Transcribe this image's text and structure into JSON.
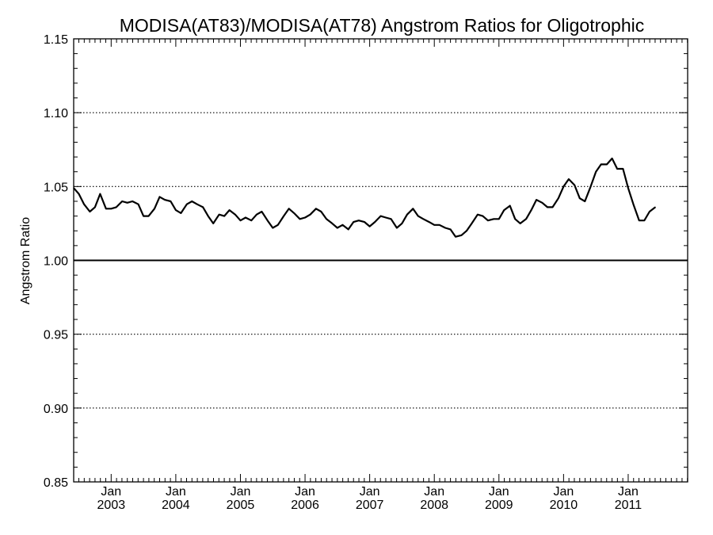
{
  "chart_data": {
    "type": "line",
    "title": "MODISA(AT83)/MODISA(AT78)  Angstrom Ratios for Oligotrophic",
    "xlabel": "",
    "ylabel": "Angstrom Ratio",
    "xlim": [
      2002.42,
      2011.92
    ],
    "ylim": [
      0.85,
      1.15
    ],
    "y_ticks": [
      "0.85",
      "0.90",
      "0.95",
      "1.00",
      "1.05",
      "1.10",
      "1.15"
    ],
    "y_tick_values": [
      0.85,
      0.9,
      0.95,
      1.0,
      1.05,
      1.1,
      1.15
    ],
    "y_dotted_gridlines": [
      0.9,
      0.95,
      1.05,
      1.1
    ],
    "reference_line": 1.0,
    "x_ticks": [
      {
        "month": "Jan",
        "year": "2003",
        "value": 2003.0
      },
      {
        "month": "Jan",
        "year": "2004",
        "value": 2004.0
      },
      {
        "month": "Jan",
        "year": "2005",
        "value": 2005.0
      },
      {
        "month": "Jan",
        "year": "2006",
        "value": 2006.0
      },
      {
        "month": "Jan",
        "year": "2007",
        "value": 2007.0
      },
      {
        "month": "Jan",
        "year": "2008",
        "value": 2008.0
      },
      {
        "month": "Jan",
        "year": "2009",
        "value": 2009.0
      },
      {
        "month": "Jan",
        "year": "2010",
        "value": 2010.0
      },
      {
        "month": "Jan",
        "year": "2011",
        "value": 2011.0
      }
    ],
    "series": [
      {
        "values": [
          [
            2002.42,
            1.049
          ],
          [
            2002.5,
            1.045
          ],
          [
            2002.58,
            1.038
          ],
          [
            2002.67,
            1.033
          ],
          [
            2002.75,
            1.036
          ],
          [
            2002.83,
            1.045
          ],
          [
            2002.92,
            1.035
          ],
          [
            2003.0,
            1.035
          ],
          [
            2003.08,
            1.036
          ],
          [
            2003.17,
            1.04
          ],
          [
            2003.25,
            1.039
          ],
          [
            2003.33,
            1.04
          ],
          [
            2003.42,
            1.038
          ],
          [
            2003.5,
            1.03
          ],
          [
            2003.58,
            1.03
          ],
          [
            2003.67,
            1.035
          ],
          [
            2003.75,
            1.043
          ],
          [
            2003.83,
            1.041
          ],
          [
            2003.92,
            1.04
          ],
          [
            2004.0,
            1.034
          ],
          [
            2004.08,
            1.032
          ],
          [
            2004.17,
            1.038
          ],
          [
            2004.25,
            1.04
          ],
          [
            2004.33,
            1.038
          ],
          [
            2004.42,
            1.036
          ],
          [
            2004.5,
            1.03
          ],
          [
            2004.58,
            1.025
          ],
          [
            2004.67,
            1.031
          ],
          [
            2004.75,
            1.03
          ],
          [
            2004.83,
            1.034
          ],
          [
            2004.92,
            1.031
          ],
          [
            2005.0,
            1.027
          ],
          [
            2005.08,
            1.029
          ],
          [
            2005.17,
            1.027
          ],
          [
            2005.25,
            1.031
          ],
          [
            2005.33,
            1.033
          ],
          [
            2005.42,
            1.027
          ],
          [
            2005.5,
            1.022
          ],
          [
            2005.58,
            1.024
          ],
          [
            2005.67,
            1.03
          ],
          [
            2005.75,
            1.035
          ],
          [
            2005.83,
            1.032
          ],
          [
            2005.92,
            1.028
          ],
          [
            2006.0,
            1.029
          ],
          [
            2006.08,
            1.031
          ],
          [
            2006.17,
            1.035
          ],
          [
            2006.25,
            1.033
          ],
          [
            2006.33,
            1.028
          ],
          [
            2006.42,
            1.025
          ],
          [
            2006.5,
            1.022
          ],
          [
            2006.58,
            1.024
          ],
          [
            2006.67,
            1.021
          ],
          [
            2006.75,
            1.026
          ],
          [
            2006.83,
            1.027
          ],
          [
            2006.92,
            1.026
          ],
          [
            2007.0,
            1.023
          ],
          [
            2007.08,
            1.026
          ],
          [
            2007.17,
            1.03
          ],
          [
            2007.25,
            1.029
          ],
          [
            2007.33,
            1.028
          ],
          [
            2007.42,
            1.022
          ],
          [
            2007.5,
            1.025
          ],
          [
            2007.58,
            1.031
          ],
          [
            2007.67,
            1.035
          ],
          [
            2007.75,
            1.03
          ],
          [
            2007.83,
            1.028
          ],
          [
            2007.92,
            1.026
          ],
          [
            2008.0,
            1.024
          ],
          [
            2008.08,
            1.024
          ],
          [
            2008.17,
            1.022
          ],
          [
            2008.25,
            1.021
          ],
          [
            2008.33,
            1.016
          ],
          [
            2008.42,
            1.017
          ],
          [
            2008.5,
            1.02
          ],
          [
            2008.58,
            1.025
          ],
          [
            2008.67,
            1.031
          ],
          [
            2008.75,
            1.03
          ],
          [
            2008.83,
            1.027
          ],
          [
            2008.92,
            1.028
          ],
          [
            2009.0,
            1.028
          ],
          [
            2009.08,
            1.034
          ],
          [
            2009.17,
            1.037
          ],
          [
            2009.25,
            1.028
          ],
          [
            2009.33,
            1.025
          ],
          [
            2009.42,
            1.028
          ],
          [
            2009.5,
            1.034
          ],
          [
            2009.58,
            1.041
          ],
          [
            2009.67,
            1.039
          ],
          [
            2009.75,
            1.036
          ],
          [
            2009.83,
            1.036
          ],
          [
            2009.92,
            1.042
          ],
          [
            2010.0,
            1.05
          ],
          [
            2010.08,
            1.055
          ],
          [
            2010.17,
            1.051
          ],
          [
            2010.25,
            1.042
          ],
          [
            2010.33,
            1.04
          ],
          [
            2010.42,
            1.05
          ],
          [
            2010.5,
            1.06
          ],
          [
            2010.58,
            1.065
          ],
          [
            2010.67,
            1.065
          ],
          [
            2010.75,
            1.069
          ],
          [
            2010.83,
            1.062
          ],
          [
            2010.92,
            1.062
          ],
          [
            2011.0,
            1.049
          ],
          [
            2011.08,
            1.038
          ],
          [
            2011.17,
            1.027
          ],
          [
            2011.25,
            1.027
          ],
          [
            2011.33,
            1.033
          ],
          [
            2011.42,
            1.036
          ]
        ]
      }
    ],
    "grid": "dotted horizontal lines at 0.90, 0.95, 1.05, 1.10",
    "legend": "none"
  }
}
